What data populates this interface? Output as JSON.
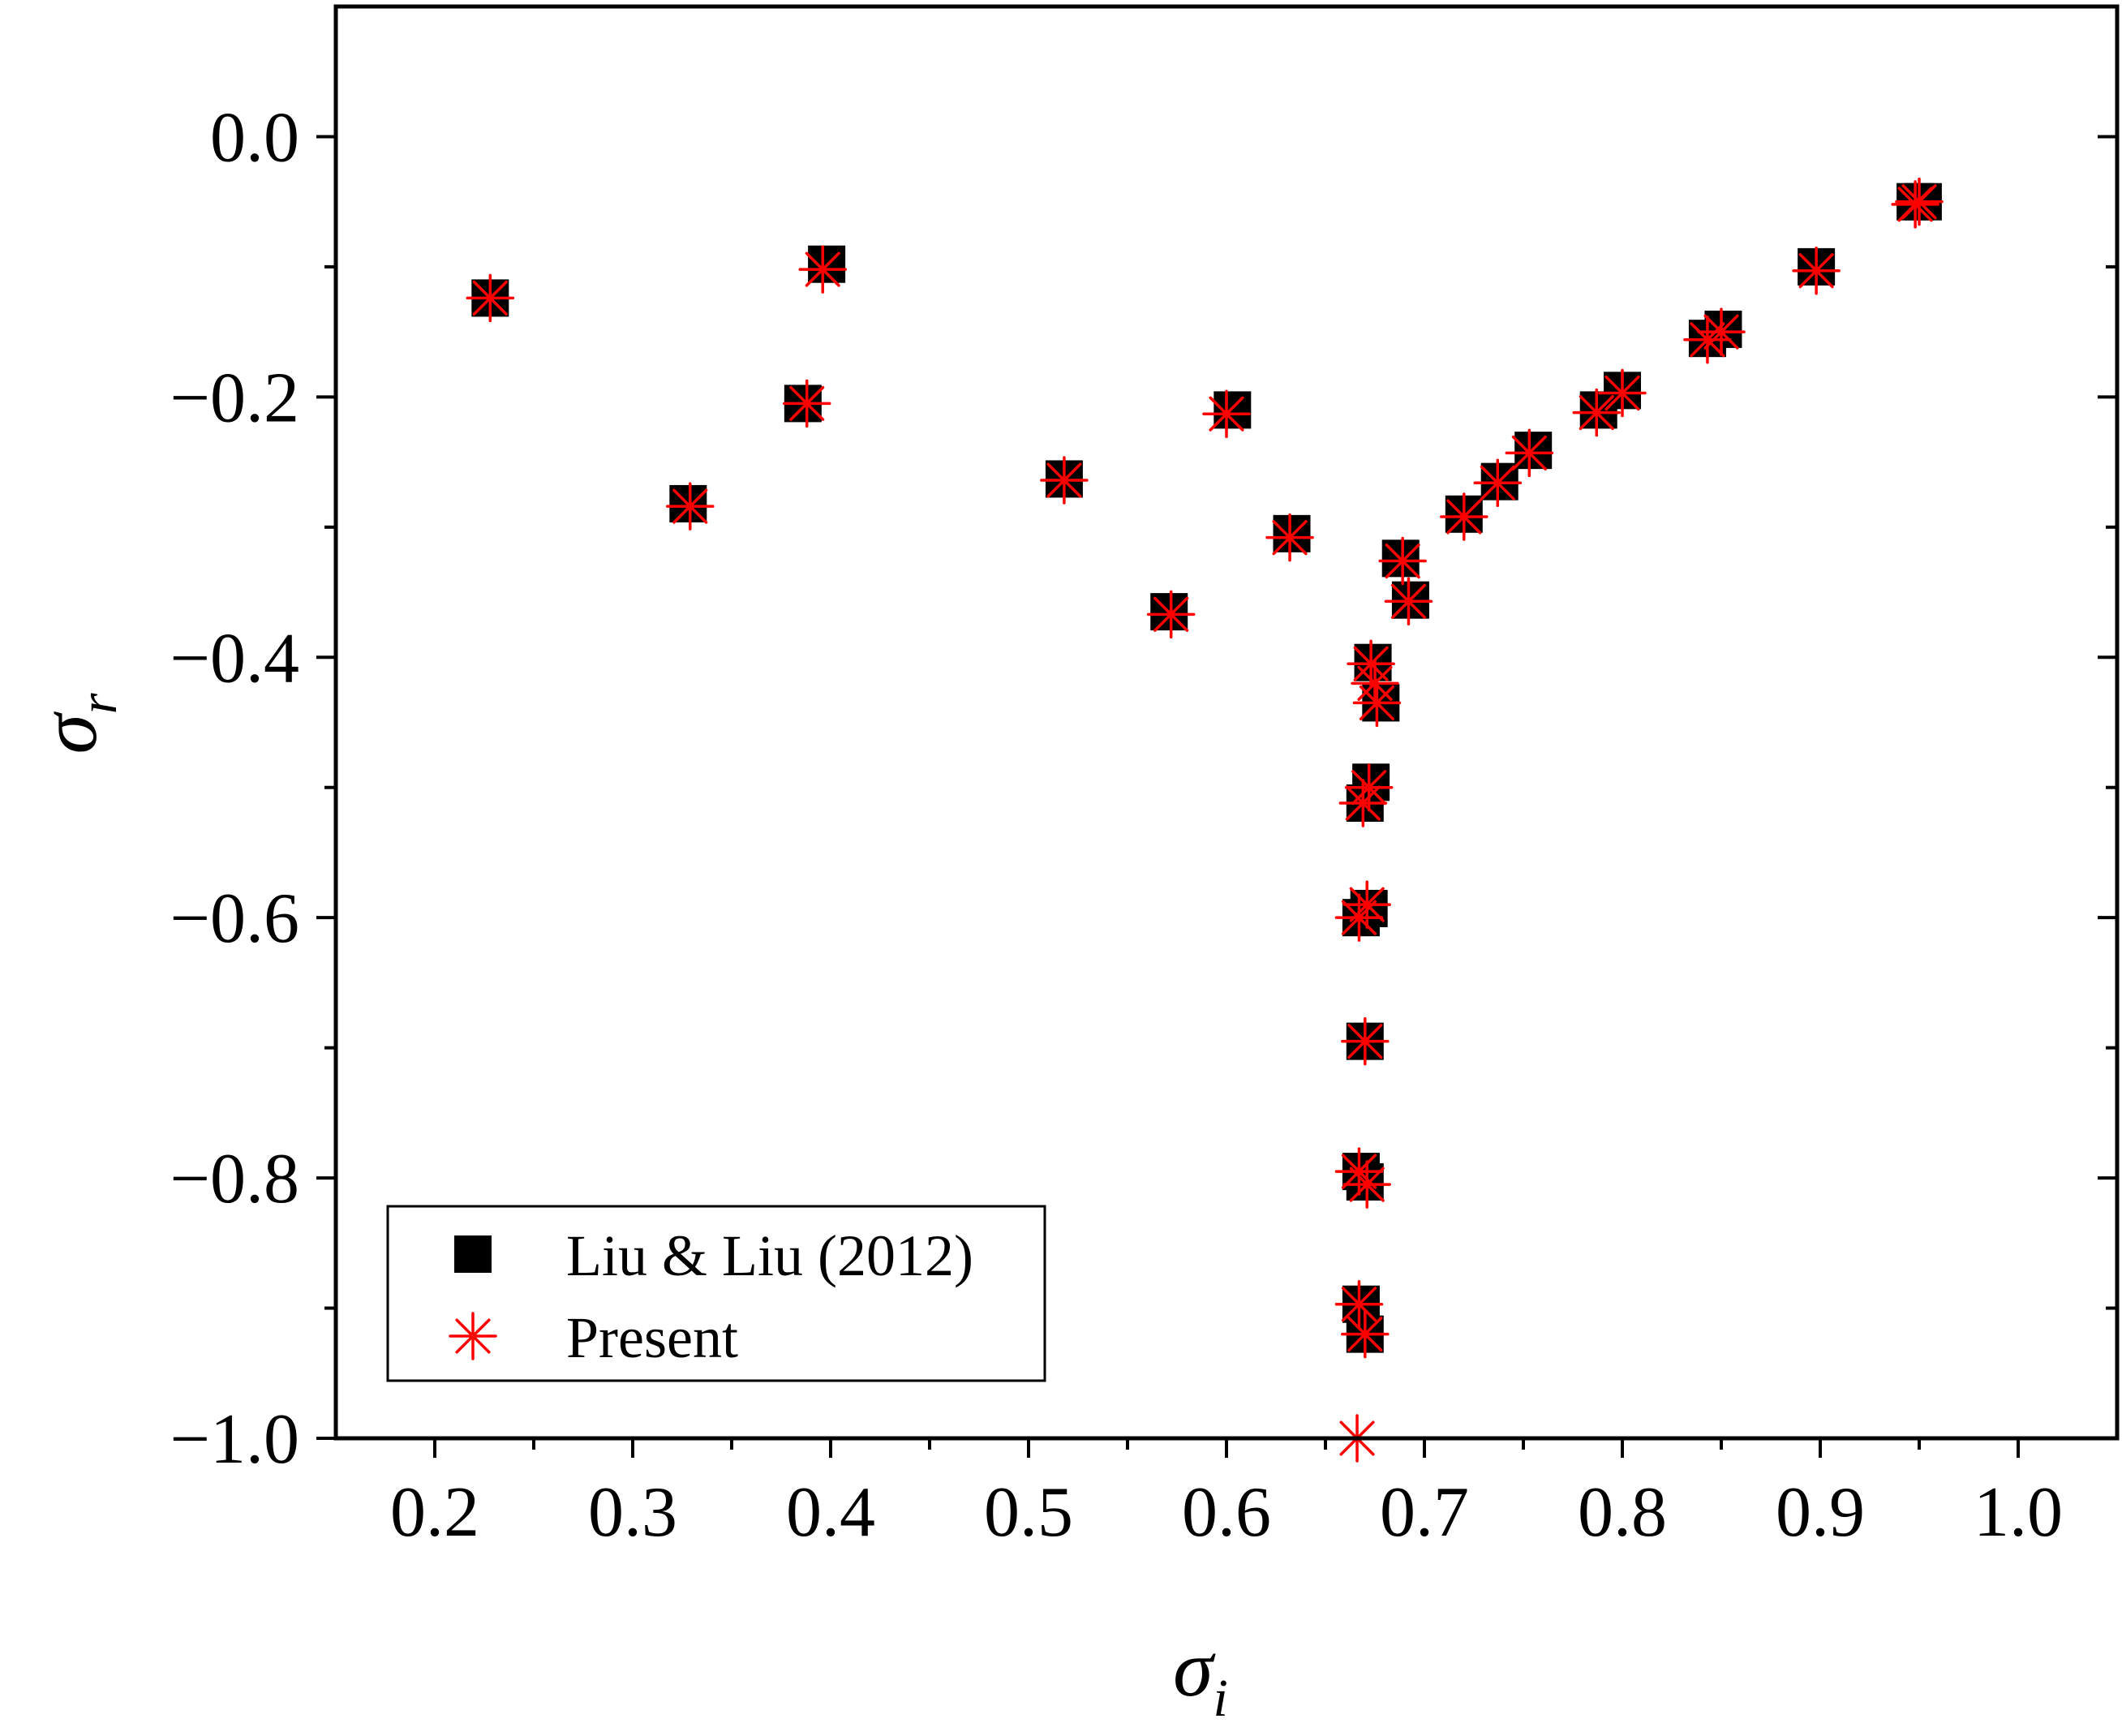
{
  "chart_data": {
    "type": "scatter",
    "title": "",
    "xlabel": {
      "symbol": "σ",
      "subscript": "i"
    },
    "ylabel": {
      "symbol": "σ",
      "subscript": "r"
    },
    "xlim": [
      0.15,
      1.05
    ],
    "ylim": [
      -1.0,
      0.1
    ],
    "xticks": [
      0.2,
      0.3,
      0.4,
      0.5,
      0.6,
      0.7,
      0.8,
      0.9,
      1.0
    ],
    "xtick_labels": [
      "0.2",
      "0.3",
      "0.4",
      "0.5",
      "0.6",
      "0.7",
      "0.8",
      "0.9",
      "1.0"
    ],
    "yticks": [
      0.0,
      -0.2,
      -0.4,
      -0.6,
      -0.8,
      -1.0
    ],
    "ytick_labels": [
      "0.0",
      "−0.2",
      "−0.4",
      "−0.6",
      "−0.8",
      "−1.0"
    ],
    "grid": false,
    "legend_position": "bottom-left",
    "series": [
      {
        "name": "Liu & Liu (2012)",
        "marker": "square",
        "color": "#000000",
        "points": [
          [
            0.228,
            -0.124
          ],
          [
            0.328,
            -0.282
          ],
          [
            0.386,
            -0.205
          ],
          [
            0.398,
            -0.098
          ],
          [
            0.518,
            -0.263
          ],
          [
            0.571,
            -0.365
          ],
          [
            0.603,
            -0.21
          ],
          [
            0.633,
            -0.305
          ],
          [
            0.668,
            -0.6
          ],
          [
            0.668,
            -0.795
          ],
          [
            0.668,
            -0.897
          ],
          [
            0.67,
            -0.512
          ],
          [
            0.67,
            -0.695
          ],
          [
            0.67,
            -0.803
          ],
          [
            0.67,
            -0.92
          ],
          [
            0.672,
            -0.593
          ],
          [
            0.673,
            -0.496
          ],
          [
            0.674,
            -0.404
          ],
          [
            0.678,
            -0.435
          ],
          [
            0.688,
            -0.324
          ],
          [
            0.693,
            -0.356
          ],
          [
            0.72,
            -0.29
          ],
          [
            0.738,
            -0.265
          ],
          [
            0.755,
            -0.241
          ],
          [
            0.788,
            -0.21
          ],
          [
            0.8,
            -0.195
          ],
          [
            0.843,
            -0.155
          ],
          [
            0.851,
            -0.148
          ],
          [
            0.898,
            -0.1
          ],
          [
            0.948,
            -0.05
          ],
          [
            0.952,
            -0.05
          ]
        ]
      },
      {
        "name": "Present",
        "marker": "asterisk",
        "color": "#ff0000",
        "points": [
          [
            0.228,
            -0.124
          ],
          [
            0.329,
            -0.284
          ],
          [
            0.388,
            -0.205
          ],
          [
            0.396,
            -0.102
          ],
          [
            0.518,
            -0.264
          ],
          [
            0.572,
            -0.367
          ],
          [
            0.6,
            -0.213
          ],
          [
            0.632,
            -0.308
          ],
          [
            0.667,
            -0.6
          ],
          [
            0.667,
            -0.795
          ],
          [
            0.667,
            -0.897
          ],
          [
            0.666,
            -1.0
          ],
          [
            0.669,
            -0.512
          ],
          [
            0.67,
            -0.695
          ],
          [
            0.671,
            -0.805
          ],
          [
            0.67,
            -0.92
          ],
          [
            0.671,
            -0.59
          ],
          [
            0.672,
            -0.5
          ],
          [
            0.673,
            -0.405
          ],
          [
            0.675,
            -0.42
          ],
          [
            0.676,
            -0.435
          ],
          [
            0.689,
            -0.326
          ],
          [
            0.692,
            -0.357
          ],
          [
            0.72,
            -0.292
          ],
          [
            0.737,
            -0.266
          ],
          [
            0.753,
            -0.243
          ],
          [
            0.787,
            -0.212
          ],
          [
            0.8,
            -0.197
          ],
          [
            0.843,
            -0.156
          ],
          [
            0.85,
            -0.15
          ],
          [
            0.898,
            -0.103
          ],
          [
            0.948,
            -0.052
          ],
          [
            0.95,
            -0.05
          ]
        ]
      }
    ]
  },
  "colors": {
    "square": "#000000",
    "asterisk": "#ff0000",
    "axis": "#000000"
  },
  "legend": {
    "items": [
      "Liu & Liu (2012)",
      "Present"
    ]
  }
}
